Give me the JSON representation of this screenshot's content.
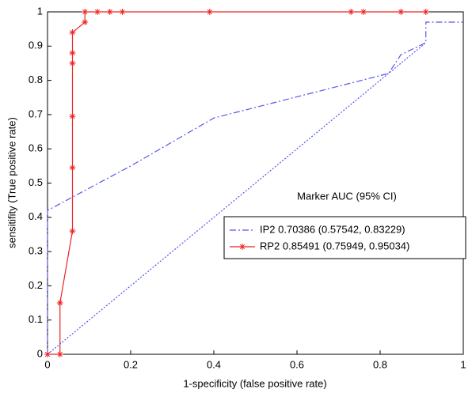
{
  "chart_data": {
    "type": "line",
    "xlabel": "1-specificity (false positive rate)",
    "ylabel": "sensitifity (True positive rate)",
    "legend_title": "Marker AUC (95% CI)",
    "legend": "lower right",
    "xlim": [
      0,
      1
    ],
    "ylim": [
      0,
      1
    ],
    "xticks": [
      0,
      0.2,
      0.4,
      0.6,
      0.8,
      1
    ],
    "yticks": [
      0,
      0.1,
      0.2,
      0.3,
      0.4,
      0.5,
      0.6,
      0.7,
      0.8,
      0.9,
      1
    ],
    "series": [
      {
        "name": "IP2 0.70386 (0.57542, 0.83229)",
        "color": "#5555ee",
        "style": "dashdot",
        "marker": "none",
        "x": [
          0,
          0,
          0.2,
          0.4,
          0.82,
          0.85,
          0.91,
          0.91,
          1
        ],
        "values": [
          0,
          0.42,
          0.55,
          0.69,
          0.82,
          0.875,
          0.91,
          0.97,
          0.97
        ]
      },
      {
        "name": "RP2 0.85491 (0.75949, 0.95034)",
        "color": "#ee2222",
        "style": "solid",
        "marker": "star",
        "x": [
          0,
          0.03,
          0.03,
          0.06,
          0.06,
          0.06,
          0.06,
          0.06,
          0.06,
          0.09,
          0.09,
          0.12,
          0.15,
          0.18,
          0.39,
          0.73,
          0.76,
          0.85,
          0.91
        ],
        "values": [
          0,
          0,
          0.15,
          0.36,
          0.545,
          0.695,
          0.85,
          0.88,
          0.94,
          0.97,
          1,
          1,
          1,
          1,
          1,
          1,
          1,
          1,
          1
        ]
      },
      {
        "color": "#5555ee",
        "style": "dotted",
        "marker": "none",
        "x": [
          0,
          0.91
        ],
        "values": [
          0,
          0.91
        ]
      }
    ]
  }
}
